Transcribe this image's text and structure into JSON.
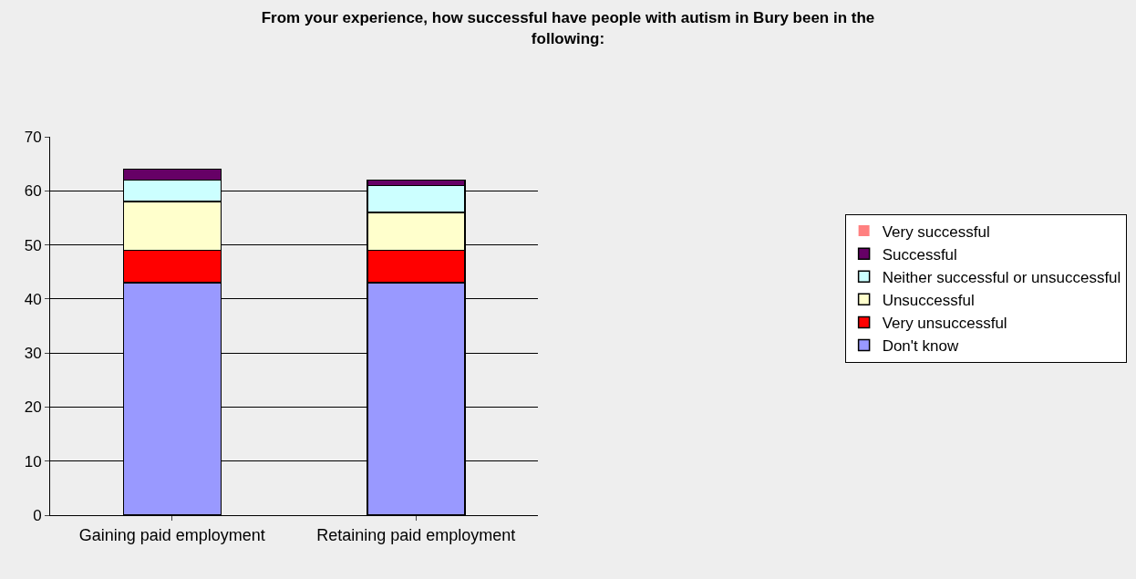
{
  "chart_data": {
    "type": "bar",
    "stacked": true,
    "title": "From your experience, how successful have people with autism in Bury been in the following:",
    "categories": [
      "Gaining paid employment",
      "Retaining paid employment"
    ],
    "series": [
      {
        "name": "Don't know",
        "color": "#9999ff",
        "values": [
          43,
          43
        ]
      },
      {
        "name": "Very unsuccessful",
        "color": "#ff0000",
        "values": [
          6,
          6
        ]
      },
      {
        "name": "Unsuccessful",
        "color": "#ffffcc",
        "values": [
          9,
          7
        ]
      },
      {
        "name": "Neither successful or unsuccessful",
        "color": "#ccffff",
        "values": [
          4,
          5
        ]
      },
      {
        "name": "Successful",
        "color": "#660066",
        "values": [
          2,
          1
        ]
      },
      {
        "name": "Very successful",
        "color": "#ff8080",
        "values": [
          0,
          0
        ]
      }
    ],
    "ylim": [
      0,
      70
    ],
    "yticks": [
      0,
      10,
      20,
      30,
      40,
      50,
      60,
      70
    ],
    "grid": "y",
    "legend": "right"
  }
}
